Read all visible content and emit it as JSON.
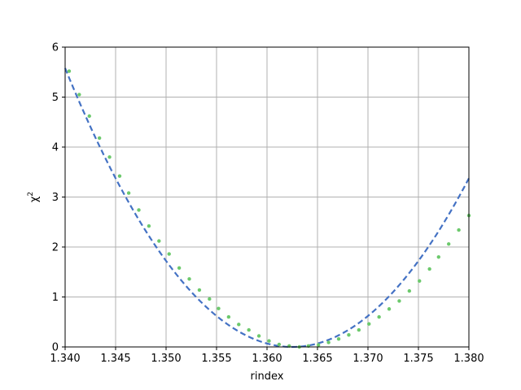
{
  "chart_data": {
    "type": "scatter",
    "title": "",
    "xlabel": "rindex",
    "ylabel": "χ",
    "ylabel_superscript": "2",
    "xlim": [
      1.34,
      1.38
    ],
    "ylim": [
      0,
      6
    ],
    "xticks": [
      "1.340",
      "1.345",
      "1.350",
      "1.355",
      "1.360",
      "1.365",
      "1.370",
      "1.375",
      "1.380"
    ],
    "yticks": [
      "0",
      "1",
      "2",
      "3",
      "4",
      "5",
      "6"
    ],
    "grid": true,
    "series": [
      {
        "kind": "points",
        "color": "#6cc96c",
        "x": [
          1.3404,
          1.3414,
          1.3424,
          1.3434,
          1.3444,
          1.3454,
          1.3463,
          1.3473,
          1.3483,
          1.3493,
          1.3503,
          1.3513,
          1.3523,
          1.3533,
          1.3543,
          1.3552,
          1.3562,
          1.3572,
          1.3582,
          1.3592,
          1.3602,
          1.3612,
          1.3622,
          1.3632,
          1.3641,
          1.3651,
          1.3661,
          1.3671,
          1.3681,
          1.3691,
          1.3701,
          1.3711,
          1.3721,
          1.3731,
          1.3741,
          1.3751,
          1.3761,
          1.377,
          1.378,
          1.379,
          1.38
        ],
        "y": [
          5.52,
          5.05,
          4.62,
          4.18,
          3.8,
          3.42,
          3.08,
          2.74,
          2.42,
          2.12,
          1.86,
          1.58,
          1.36,
          1.14,
          0.96,
          0.77,
          0.6,
          0.45,
          0.34,
          0.22,
          0.12,
          0.05,
          0.02,
          0.0,
          0.02,
          0.04,
          0.09,
          0.16,
          0.24,
          0.34,
          0.46,
          0.6,
          0.76,
          0.92,
          1.12,
          1.32,
          1.56,
          1.8,
          2.06,
          2.34,
          2.63
        ]
      },
      {
        "kind": "fit",
        "color": "#4472c4",
        "style": "dashed",
        "vertex_x": 1.3625,
        "vertex_y": 0.0,
        "curvature": 11020,
        "x_range": [
          1.34,
          1.38
        ]
      }
    ]
  }
}
